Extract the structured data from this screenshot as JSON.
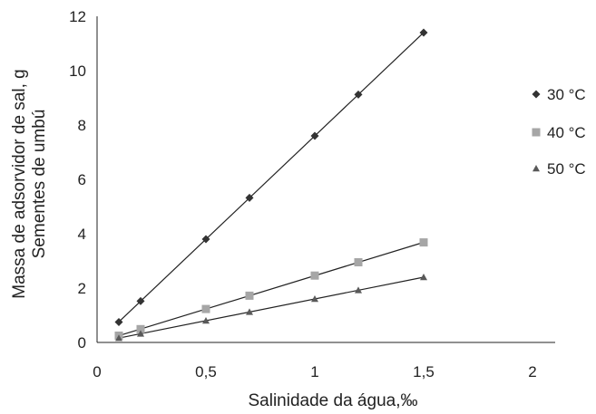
{
  "chart_data": {
    "type": "scatter",
    "title": "",
    "xlabel": "Salinidade da água,‰",
    "ylabel": [
      "Massa de adsorvidor de sal, g",
      "Sementes de umbú"
    ],
    "xlim": [
      0,
      2
    ],
    "ylim": [
      0,
      12
    ],
    "xticks": [
      0,
      0.5,
      1,
      1.5,
      2
    ],
    "xtick_labels": [
      "0",
      "0,5",
      "1",
      "1,5",
      "2"
    ],
    "yticks": [
      0,
      2,
      4,
      6,
      8,
      10,
      12
    ],
    "ytick_labels": [
      "0",
      "2",
      "4",
      "6",
      "8",
      "10",
      "12"
    ],
    "grid": false,
    "trendlines": true,
    "legend_position": "right",
    "x": [
      0.1,
      0.2,
      0.5,
      0.7,
      1.0,
      1.2,
      1.5
    ],
    "series": [
      {
        "name": "30 °C",
        "marker": "diamond",
        "color": "#333333",
        "values": [
          0.75,
          1.52,
          3.8,
          5.32,
          7.6,
          9.12,
          11.4
        ]
      },
      {
        "name": "40 °C",
        "marker": "square",
        "color": "#a6a6a6",
        "values": [
          0.25,
          0.49,
          1.23,
          1.72,
          2.46,
          2.95,
          3.68
        ]
      },
      {
        "name": "50 °C",
        "marker": "triangle",
        "color": "#595959",
        "values": [
          0.16,
          0.32,
          0.8,
          1.12,
          1.6,
          1.92,
          2.4
        ]
      }
    ]
  }
}
